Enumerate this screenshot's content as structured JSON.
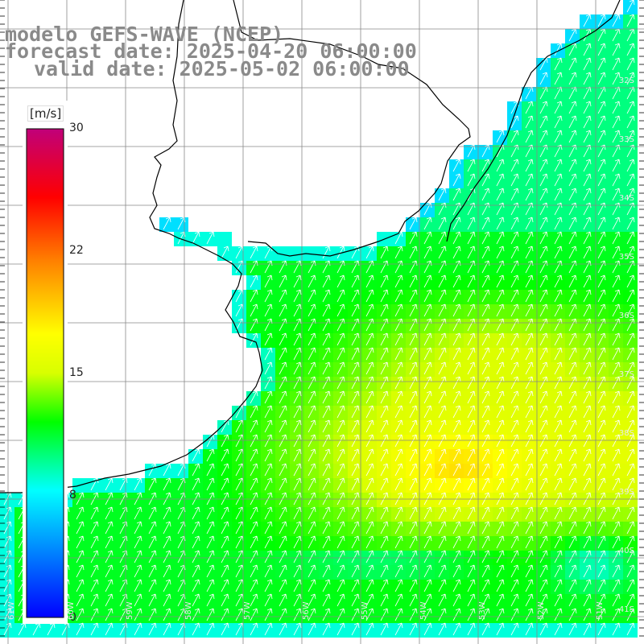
{
  "title": {
    "line1": "modelo GEFS-WAVE (NCEP)",
    "line2": "forecast date: 2025-04-20 06:00:00",
    "line3": "valid date: 2025-05-02 06:00:00"
  },
  "colorbar": {
    "unit": "[m/s]",
    "ticks": [
      "30",
      "22",
      "15",
      "8",
      "0"
    ],
    "min": 0,
    "max": 30,
    "stops": [
      {
        "value": 0,
        "color": "#0000ff"
      },
      {
        "value": 8,
        "color": "#00ffff"
      },
      {
        "value": 12,
        "color": "#00ff00"
      },
      {
        "value": 15,
        "color": "#d8ff00"
      },
      {
        "value": 18,
        "color": "#ffff00"
      },
      {
        "value": 22,
        "color": "#ff8000"
      },
      {
        "value": 26,
        "color": "#ff0000"
      },
      {
        "value": 30,
        "color": "#c0007a"
      }
    ]
  },
  "latitude_labels": [
    "32S",
    "33S",
    "34S",
    "35S",
    "36S",
    "37S",
    "38S",
    "39S",
    "40S",
    "41S"
  ],
  "longitude_labels": [
    "61W",
    "60W",
    "59W",
    "58W",
    "57W",
    "56W",
    "55W",
    "54W",
    "53W",
    "52W",
    "51W"
  ],
  "colors": {
    "grid": "#888888",
    "coast": "#000000",
    "arrow": "#ffffff",
    "title": "#8a8a8a"
  },
  "wind_field": {
    "variable": "wind speed",
    "direction": "from SW (towards NE)"
  }
}
